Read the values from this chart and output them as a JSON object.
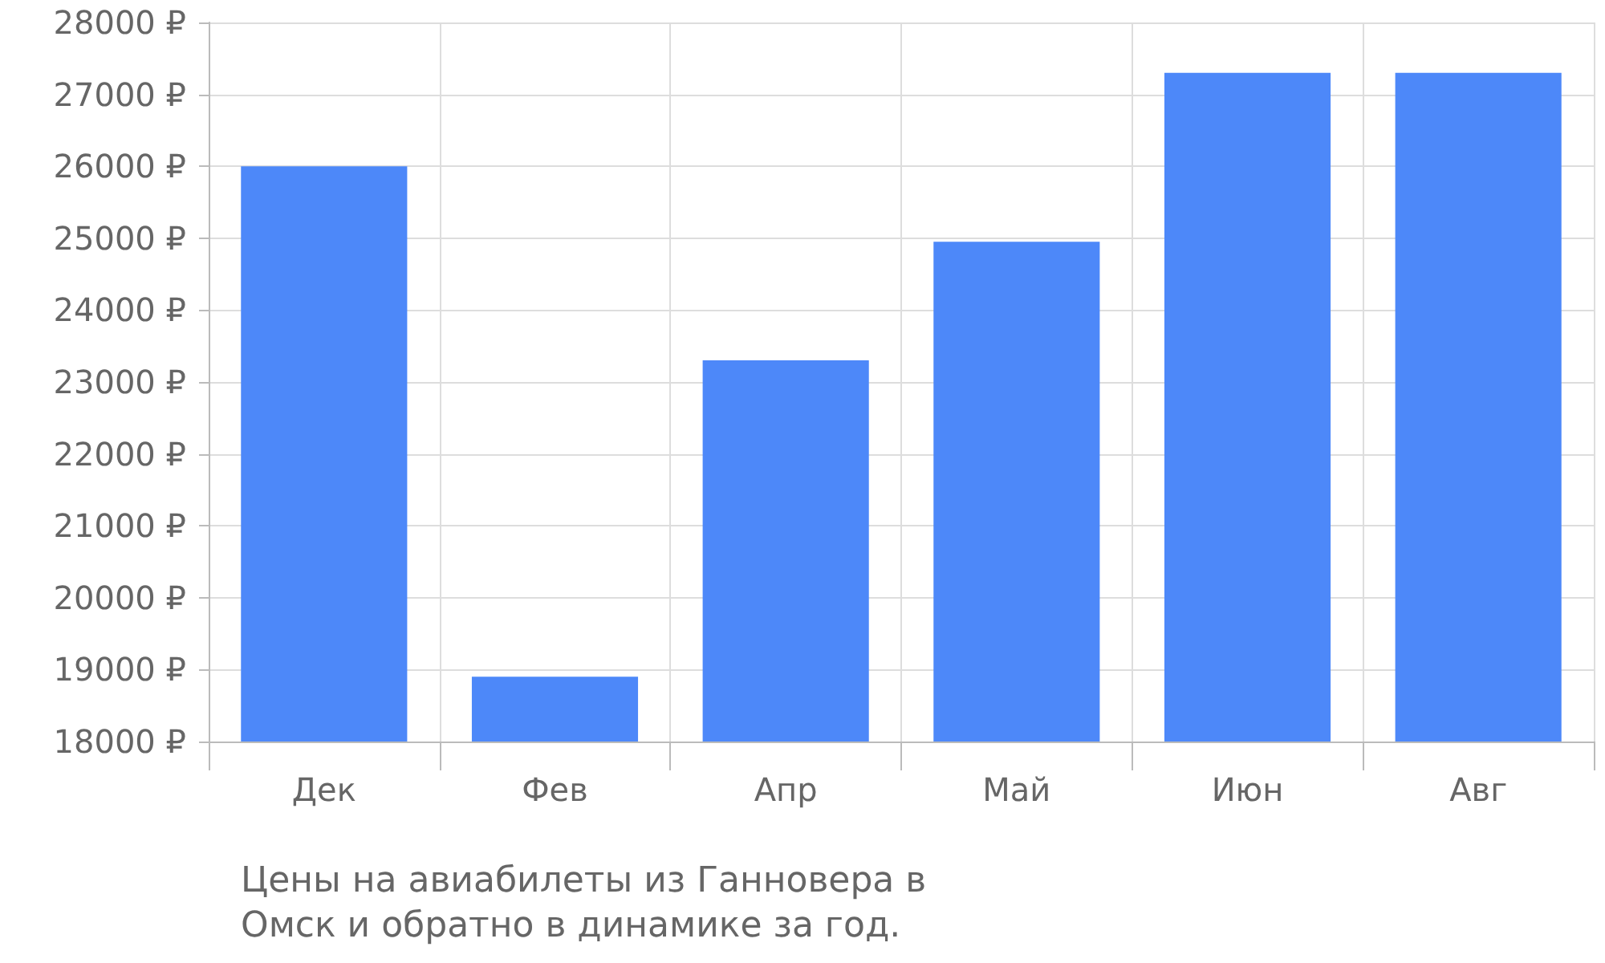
{
  "chart_data": {
    "type": "bar",
    "categories": [
      "Дек",
      "Фев",
      "Апр",
      "Май",
      "Июн",
      "Авг"
    ],
    "values": [
      26000,
      18900,
      23300,
      24950,
      27300,
      27300
    ],
    "color": "#4d88f9",
    "ylim": [
      18000,
      28000
    ],
    "yticks": [
      {
        "value": 18000,
        "label": "18000 ₽"
      },
      {
        "value": 19000,
        "label": "19000 ₽"
      },
      {
        "value": 20000,
        "label": "20000 ₽"
      },
      {
        "value": 21000,
        "label": "21000 ₽"
      },
      {
        "value": 22000,
        "label": "22000 ₽"
      },
      {
        "value": 23000,
        "label": "23000 ₽"
      },
      {
        "value": 24000,
        "label": "24000 ₽"
      },
      {
        "value": 25000,
        "label": "25000 ₽"
      },
      {
        "value": 26000,
        "label": "26000 ₽"
      },
      {
        "value": 27000,
        "label": "27000 ₽"
      },
      {
        "value": 28000,
        "label": "28000 ₽"
      }
    ],
    "grid": true,
    "annotations": [
      "Цены на авиабилеты из Ганновера в Омск и обратно в динамике за год."
    ]
  }
}
